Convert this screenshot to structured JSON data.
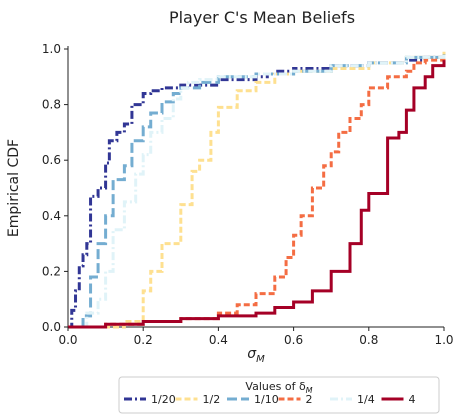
{
  "chart_data": {
    "type": "line",
    "title": "Player C's Mean Beliefs",
    "ylabel": "Empirical CDF",
    "xlabel_base": "σ",
    "xlabel_sub": "M",
    "xlim": [
      0,
      1
    ],
    "ylim": [
      0,
      1
    ],
    "x_ticks": [
      "0.0",
      "0.2",
      "0.4",
      "0.6",
      "0.8",
      "1.0"
    ],
    "y_ticks": [
      "0.0",
      "0.2",
      "0.4",
      "0.6",
      "0.8",
      "1.0"
    ],
    "legend": {
      "title_base": "Values of δ",
      "title_sub": "M",
      "placement": "bottom-center"
    },
    "series": [
      {
        "name": "1/20",
        "color": "#313695",
        "dash": "dashdot",
        "x": [
          0.0,
          0.01,
          0.02,
          0.03,
          0.04,
          0.05,
          0.06,
          0.08,
          0.1,
          0.11,
          0.13,
          0.15,
          0.17,
          0.2,
          0.22,
          0.25,
          0.3,
          0.4,
          0.5,
          0.53,
          0.55,
          0.6,
          0.7,
          0.8,
          0.9,
          0.95,
          1.0
        ],
        "y": [
          0.0,
          0.06,
          0.13,
          0.22,
          0.26,
          0.3,
          0.47,
          0.5,
          0.59,
          0.67,
          0.7,
          0.73,
          0.8,
          0.84,
          0.85,
          0.86,
          0.87,
          0.89,
          0.9,
          0.91,
          0.92,
          0.93,
          0.94,
          0.95,
          0.96,
          0.97,
          0.98
        ]
      },
      {
        "name": "1/2",
        "color": "#fee090",
        "dash": "dashed",
        "x": [
          0.0,
          0.15,
          0.2,
          0.22,
          0.25,
          0.3,
          0.33,
          0.35,
          0.38,
          0.4,
          0.45,
          0.5,
          0.55,
          0.6,
          0.7,
          0.8,
          0.9,
          1.0
        ],
        "y": [
          0.0,
          0.02,
          0.13,
          0.2,
          0.3,
          0.44,
          0.56,
          0.6,
          0.7,
          0.79,
          0.85,
          0.88,
          0.91,
          0.92,
          0.93,
          0.95,
          0.97,
          0.99
        ]
      },
      {
        "name": "1/10",
        "color": "#74add1",
        "dash": "longdash",
        "x": [
          0.0,
          0.04,
          0.06,
          0.08,
          0.1,
          0.12,
          0.15,
          0.17,
          0.2,
          0.22,
          0.25,
          0.28,
          0.3,
          0.35,
          0.4,
          0.5,
          0.6,
          0.7,
          0.8,
          0.9,
          1.0
        ],
        "y": [
          0.0,
          0.04,
          0.18,
          0.3,
          0.4,
          0.53,
          0.58,
          0.67,
          0.72,
          0.77,
          0.81,
          0.84,
          0.86,
          0.88,
          0.9,
          0.91,
          0.92,
          0.94,
          0.95,
          0.97,
          0.98
        ]
      },
      {
        "name": "2",
        "color": "#f46d43",
        "dash": "dashed",
        "x": [
          0.0,
          0.1,
          0.2,
          0.3,
          0.4,
          0.45,
          0.5,
          0.55,
          0.58,
          0.6,
          0.62,
          0.65,
          0.68,
          0.7,
          0.72,
          0.75,
          0.78,
          0.8,
          0.85,
          0.9,
          0.92,
          0.95,
          1.0
        ],
        "y": [
          0.0,
          0.01,
          0.02,
          0.03,
          0.05,
          0.08,
          0.12,
          0.18,
          0.25,
          0.33,
          0.4,
          0.5,
          0.58,
          0.63,
          0.7,
          0.75,
          0.8,
          0.86,
          0.9,
          0.92,
          0.95,
          0.96,
          0.97
        ]
      },
      {
        "name": "1/4",
        "color": "#e0f3f8",
        "dash": "dashdot",
        "x": [
          0.0,
          0.05,
          0.08,
          0.1,
          0.12,
          0.15,
          0.18,
          0.2,
          0.22,
          0.25,
          0.28,
          0.3,
          0.32,
          0.35,
          0.4,
          0.5,
          0.6,
          0.7,
          0.8,
          0.9,
          1.0
        ],
        "y": [
          0.0,
          0.05,
          0.1,
          0.2,
          0.35,
          0.45,
          0.55,
          0.62,
          0.7,
          0.75,
          0.82,
          0.86,
          0.88,
          0.89,
          0.9,
          0.91,
          0.92,
          0.94,
          0.95,
          0.97,
          0.98
        ]
      },
      {
        "name": "4",
        "color": "#a50026",
        "dash": "solid",
        "x": [
          0.0,
          0.1,
          0.2,
          0.3,
          0.4,
          0.5,
          0.55,
          0.6,
          0.65,
          0.7,
          0.75,
          0.78,
          0.8,
          0.85,
          0.88,
          0.9,
          0.92,
          0.95,
          0.97,
          1.0
        ],
        "y": [
          0.0,
          0.01,
          0.02,
          0.03,
          0.04,
          0.05,
          0.07,
          0.09,
          0.13,
          0.2,
          0.3,
          0.42,
          0.48,
          0.68,
          0.7,
          0.78,
          0.86,
          0.9,
          0.94,
          0.96
        ]
      }
    ],
    "legend_order": [
      "1/20",
      "1/2",
      "1/10",
      "2",
      "1/4",
      "4"
    ]
  }
}
